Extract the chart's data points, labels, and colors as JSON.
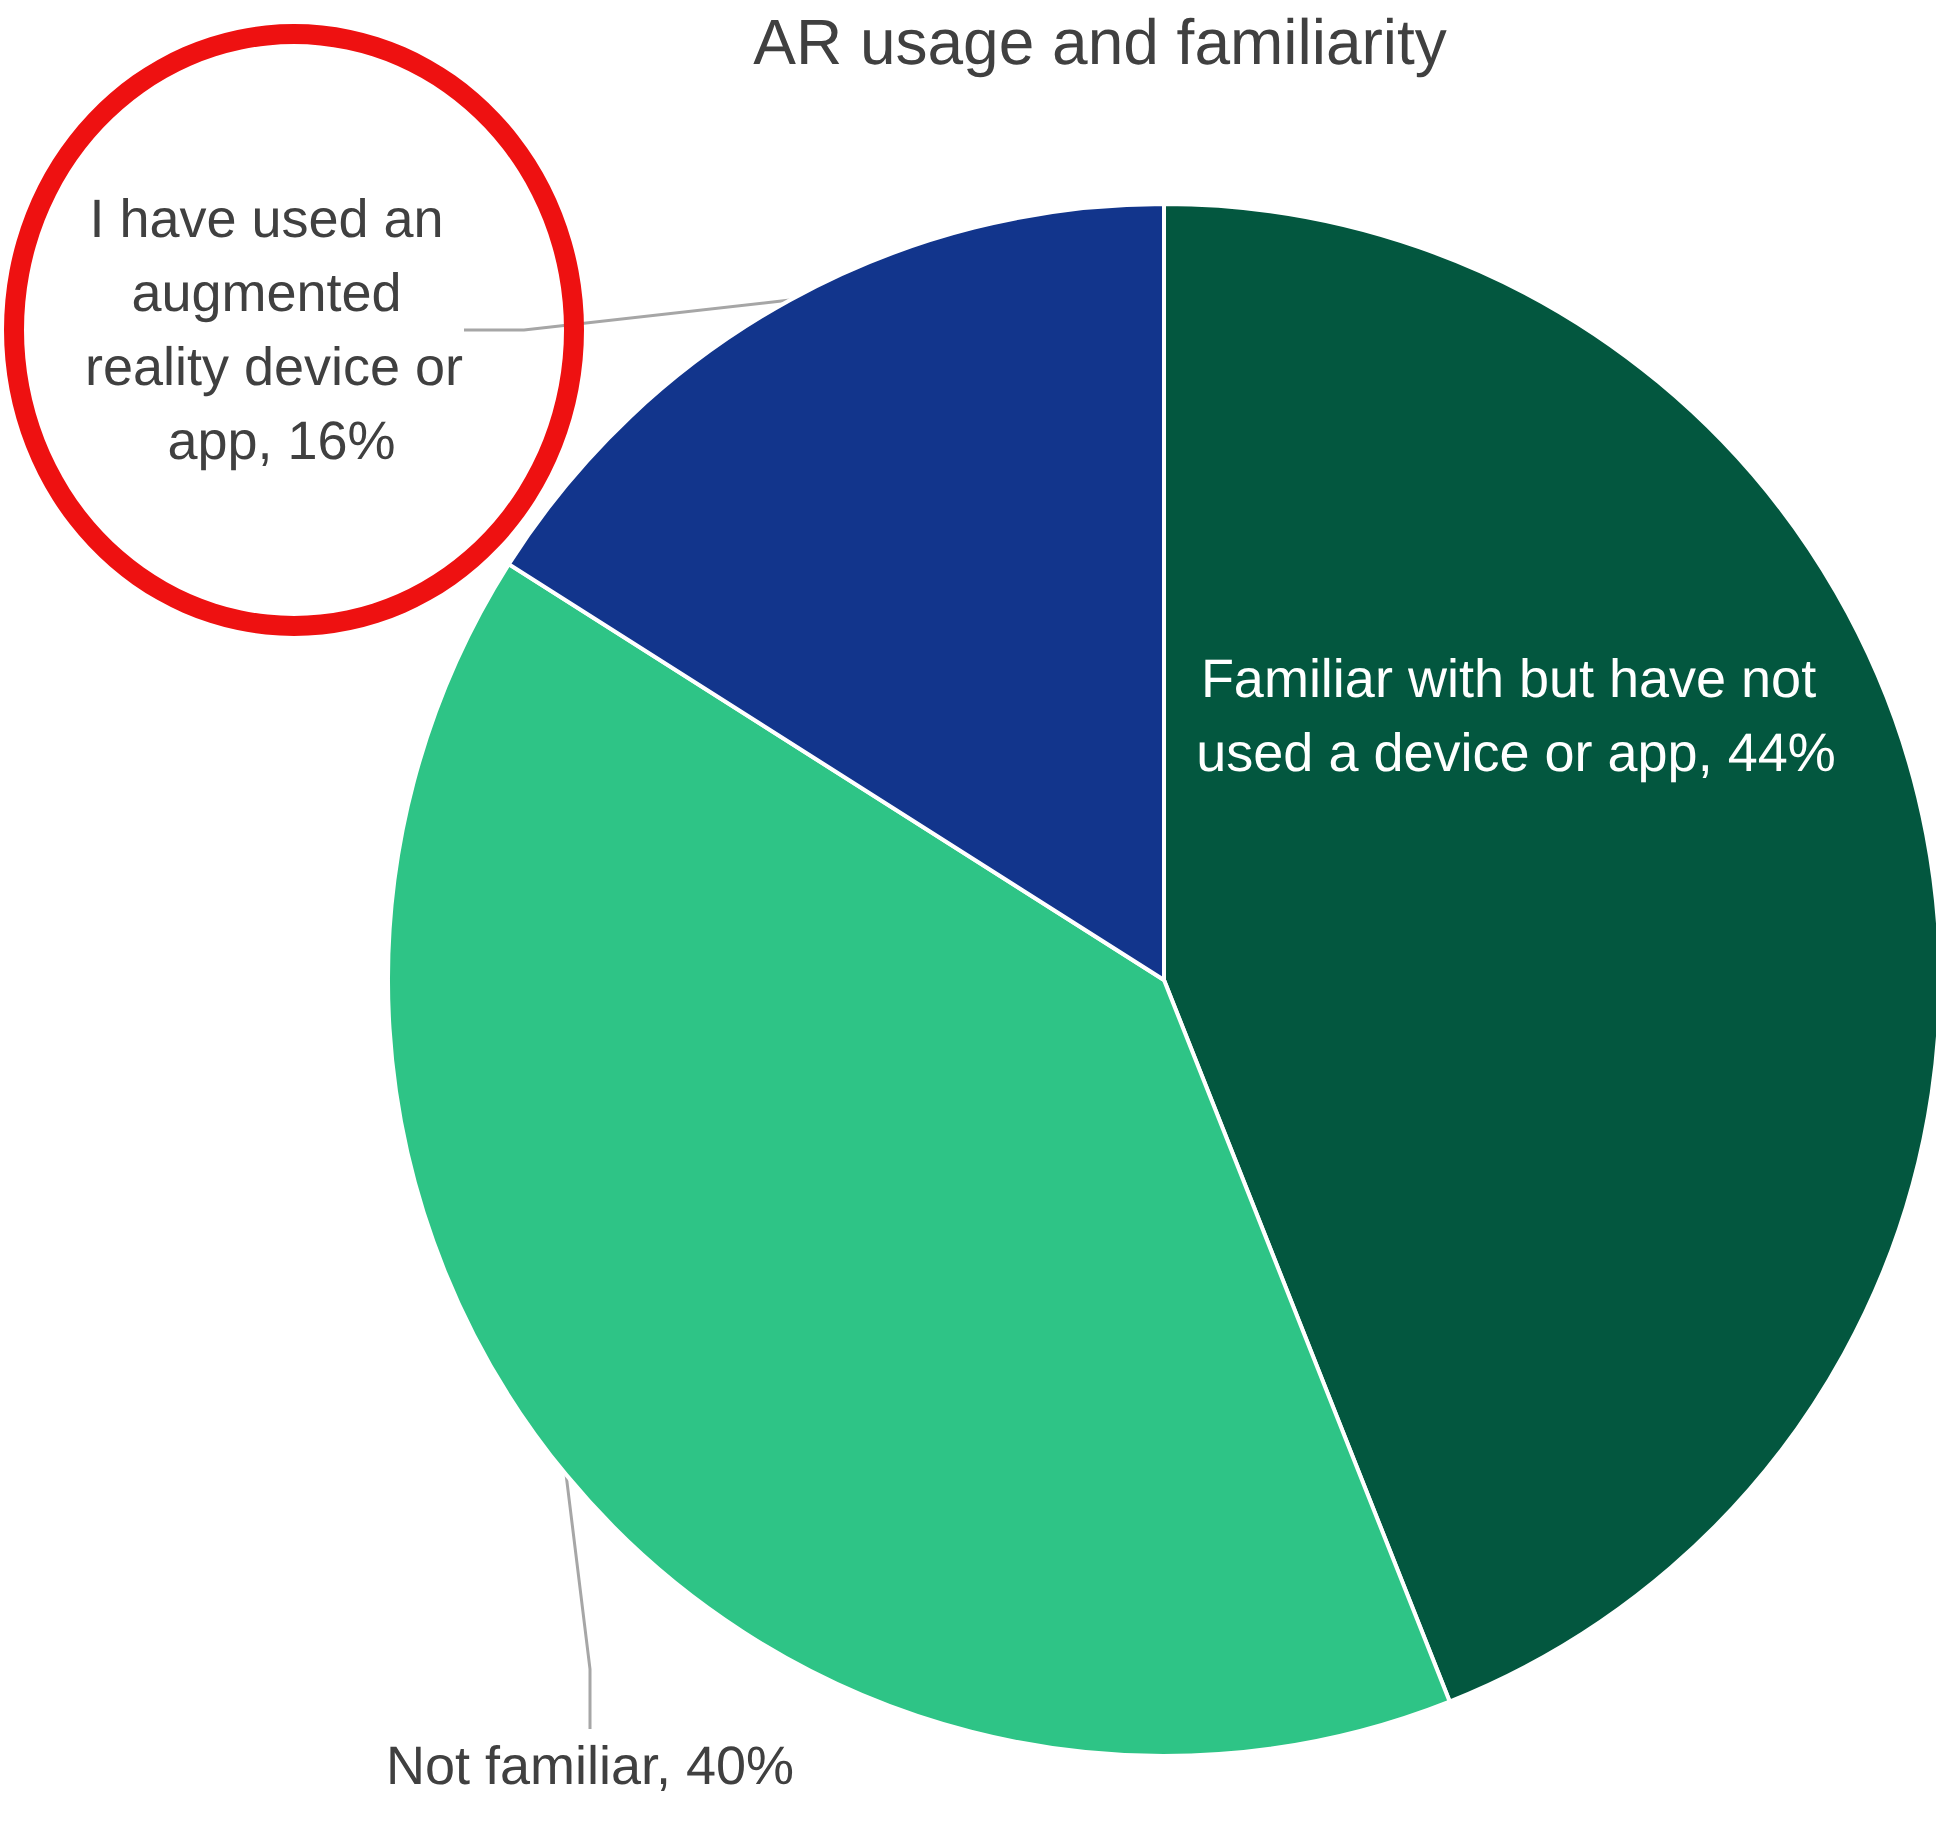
{
  "chart_data": {
    "type": "pie",
    "title": "AR usage and familiarity",
    "categories": [
      "Familiar with but have not used a device or app",
      "Not familiar",
      "I have used an augmented reality device or app"
    ],
    "values": [
      44,
      40,
      16
    ],
    "colors": [
      "#03573f",
      "#2ec486",
      "#12358c"
    ],
    "value_labels": [
      "44%",
      "40%",
      "16%"
    ]
  }
}
